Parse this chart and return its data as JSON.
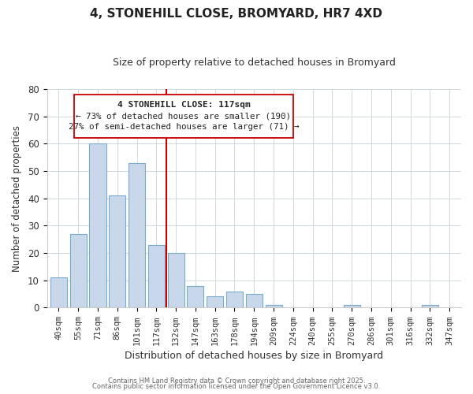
{
  "title": "4, STONEHILL CLOSE, BROMYARD, HR7 4XD",
  "subtitle": "Size of property relative to detached houses in Bromyard",
  "xlabel": "Distribution of detached houses by size in Bromyard",
  "ylabel": "Number of detached properties",
  "categories": [
    "40sqm",
    "55sqm",
    "71sqm",
    "86sqm",
    "101sqm",
    "117sqm",
    "132sqm",
    "147sqm",
    "163sqm",
    "178sqm",
    "194sqm",
    "209sqm",
    "224sqm",
    "240sqm",
    "255sqm",
    "270sqm",
    "286sqm",
    "301sqm",
    "316sqm",
    "332sqm",
    "347sqm"
  ],
  "values": [
    11,
    27,
    60,
    41,
    53,
    23,
    20,
    8,
    4,
    6,
    5,
    1,
    0,
    0,
    0,
    1,
    0,
    0,
    0,
    1,
    0
  ],
  "bar_color": "#c8d8ea",
  "bar_edge_color": "#7aaBcc",
  "vline_x": 5.5,
  "vline_color": "#cc0000",
  "ylim": [
    0,
    80
  ],
  "yticks": [
    0,
    10,
    20,
    30,
    40,
    50,
    60,
    70,
    80
  ],
  "annotation_title": "4 STONEHILL CLOSE: 117sqm",
  "annotation_line1": "← 73% of detached houses are smaller (190)",
  "annotation_line2": "27% of semi-detached houses are larger (71) →",
  "background_color": "#f0f4f8",
  "footer_line1": "Contains HM Land Registry data © Crown copyright and database right 2025.",
  "footer_line2": "Contains public sector information licensed under the Open Government Licence v3.0."
}
